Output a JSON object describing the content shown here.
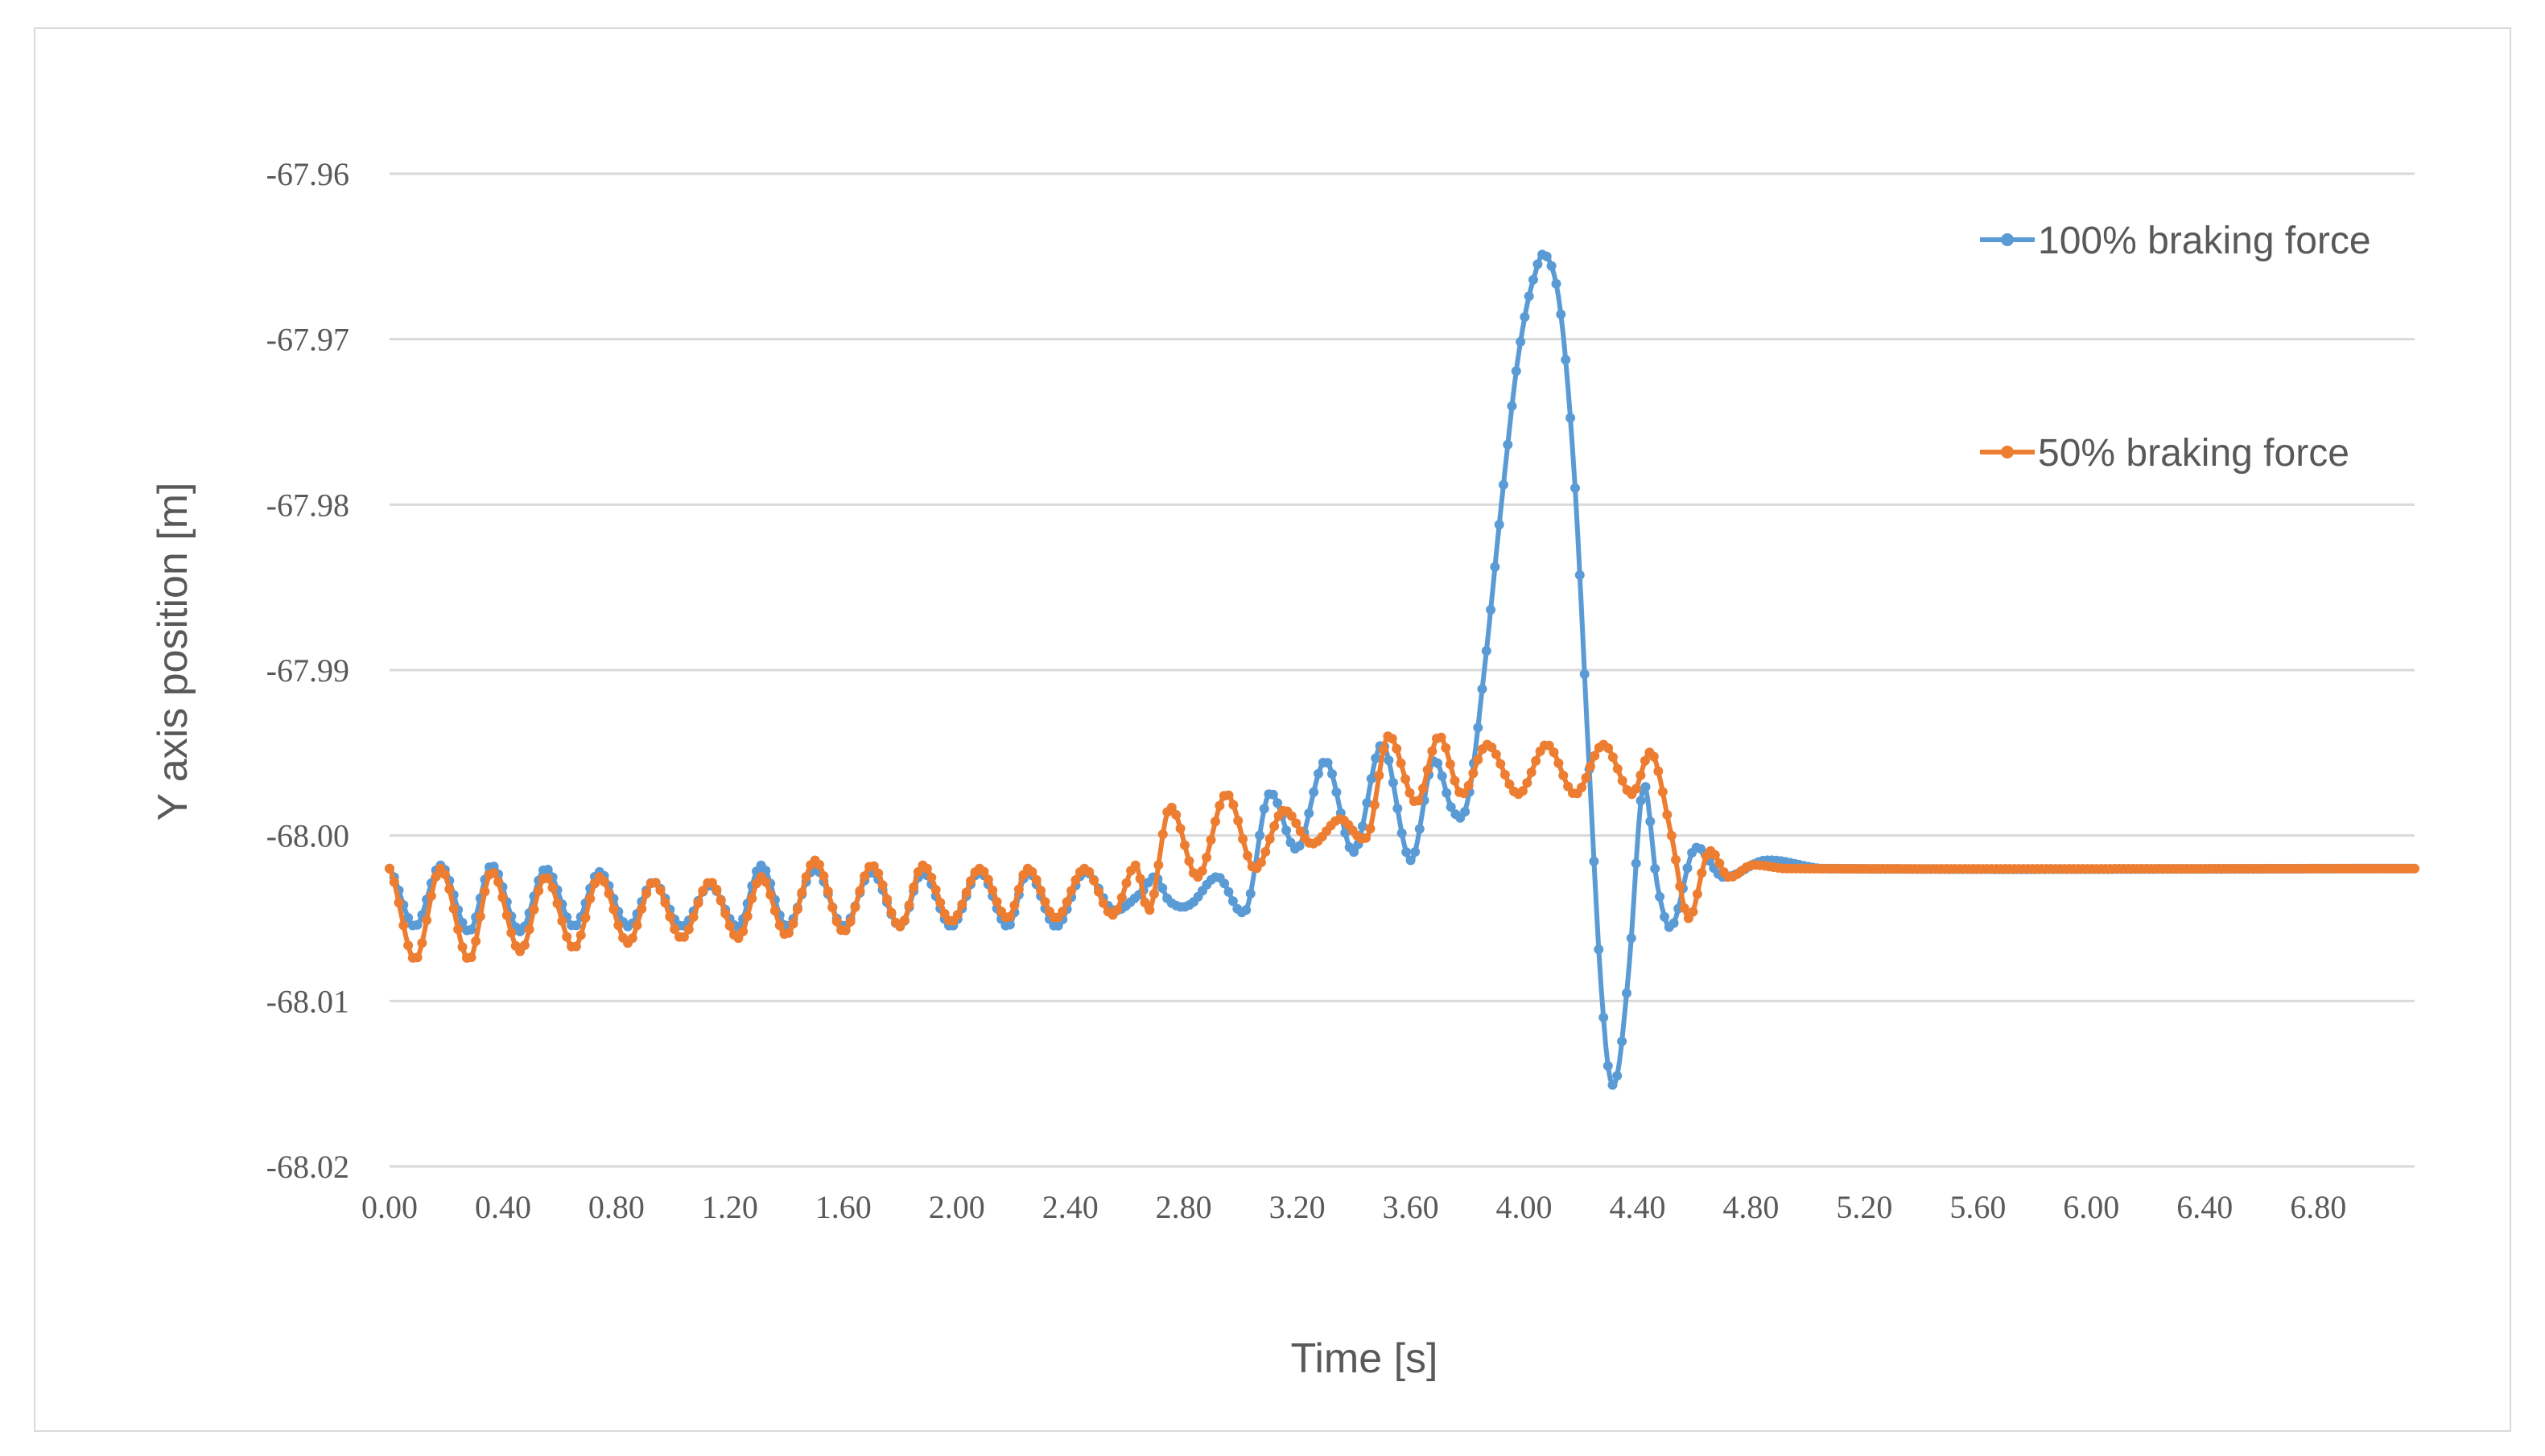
{
  "chart_data": {
    "type": "line",
    "xlabel": "Time [s]",
    "ylabel": "Y axis position  [m]",
    "xlim": [
      0,
      7.14
    ],
    "ylim": [
      -68.02,
      -67.96
    ],
    "x_ticks": [
      "0.00",
      "0.40",
      "0.80",
      "1.20",
      "1.60",
      "2.00",
      "2.40",
      "2.80",
      "3.20",
      "3.60",
      "4.00",
      "4.40",
      "4.80",
      "5.20",
      "5.60",
      "6.00",
      "6.40",
      "6.80"
    ],
    "y_ticks": [
      "-67.96",
      "-67.97",
      "-67.98",
      "-67.99",
      "-68.00",
      "-68.01",
      "-68.02"
    ],
    "grid": true,
    "legend_position": "right",
    "series": [
      {
        "name": "100% braking force",
        "color": "#5B9BD5",
        "points": [
          [
            0.0,
            -68.002
          ],
          [
            0.09,
            -68.0055
          ],
          [
            0.18,
            -68.0018
          ],
          [
            0.28,
            -68.0058
          ],
          [
            0.36,
            -68.0018
          ],
          [
            0.46,
            -68.0058
          ],
          [
            0.55,
            -68.002
          ],
          [
            0.65,
            -68.0055
          ],
          [
            0.74,
            -68.0022
          ],
          [
            0.84,
            -68.0055
          ],
          [
            0.93,
            -68.0028
          ],
          [
            1.03,
            -68.0055
          ],
          [
            1.13,
            -68.003
          ],
          [
            1.23,
            -68.0055
          ],
          [
            1.31,
            -68.0018
          ],
          [
            1.4,
            -68.0055
          ],
          [
            1.5,
            -68.002
          ],
          [
            1.6,
            -68.0055
          ],
          [
            1.7,
            -68.0022
          ],
          [
            1.8,
            -68.0055
          ],
          [
            1.88,
            -68.0022
          ],
          [
            1.98,
            -68.0055
          ],
          [
            2.08,
            -68.0022
          ],
          [
            2.18,
            -68.0055
          ],
          [
            2.25,
            -68.0022
          ],
          [
            2.35,
            -68.0055
          ],
          [
            2.45,
            -68.0022
          ],
          [
            2.55,
            -68.0045
          ],
          [
            2.65,
            -68.0035
          ],
          [
            2.7,
            -68.0025
          ],
          [
            2.75,
            -68.004
          ],
          [
            2.82,
            -68.0042
          ],
          [
            2.92,
            -68.0025
          ],
          [
            3.02,
            -68.0045
          ],
          [
            3.1,
            -67.9975
          ],
          [
            3.2,
            -68.0008
          ],
          [
            3.3,
            -67.9955
          ],
          [
            3.4,
            -68.001
          ],
          [
            3.5,
            -67.9945
          ],
          [
            3.6,
            -68.0015
          ],
          [
            3.68,
            -67.9955
          ],
          [
            3.75,
            -67.9985
          ],
          [
            3.8,
            -67.998
          ],
          [
            3.86,
            -67.99
          ],
          [
            3.92,
            -67.98
          ],
          [
            3.98,
            -67.971
          ],
          [
            4.04,
            -67.966
          ],
          [
            4.08,
            -67.965
          ],
          [
            4.13,
            -67.9685
          ],
          [
            4.18,
            -67.979
          ],
          [
            4.23,
            -67.996
          ],
          [
            4.28,
            -68.011
          ],
          [
            4.32,
            -68.015
          ],
          [
            4.37,
            -68.008
          ],
          [
            4.42,
            -67.997
          ],
          [
            4.47,
            -68.003
          ],
          [
            4.52,
            -68.0055
          ],
          [
            4.6,
            -68.0008
          ],
          [
            4.7,
            -68.0025
          ],
          [
            4.85,
            -68.0015
          ],
          [
            5.05,
            -68.002
          ],
          [
            7.14,
            -68.002
          ]
        ]
      },
      {
        "name": "50% braking force",
        "color": "#ED7D31",
        "points": [
          [
            0.0,
            -68.002
          ],
          [
            0.09,
            -68.0075
          ],
          [
            0.18,
            -68.002
          ],
          [
            0.28,
            -68.0075
          ],
          [
            0.36,
            -68.0022
          ],
          [
            0.46,
            -68.007
          ],
          [
            0.55,
            -68.0025
          ],
          [
            0.65,
            -68.0068
          ],
          [
            0.74,
            -68.0025
          ],
          [
            0.84,
            -68.0065
          ],
          [
            0.93,
            -68.0028
          ],
          [
            1.03,
            -68.0062
          ],
          [
            1.13,
            -68.0028
          ],
          [
            1.23,
            -68.0062
          ],
          [
            1.31,
            -68.0025
          ],
          [
            1.4,
            -68.006
          ],
          [
            1.5,
            -68.0015
          ],
          [
            1.6,
            -68.0058
          ],
          [
            1.7,
            -68.0018
          ],
          [
            1.8,
            -68.0055
          ],
          [
            1.88,
            -68.0018
          ],
          [
            1.98,
            -68.0052
          ],
          [
            2.08,
            -68.002
          ],
          [
            2.18,
            -68.005
          ],
          [
            2.25,
            -68.002
          ],
          [
            2.35,
            -68.005
          ],
          [
            2.45,
            -68.002
          ],
          [
            2.55,
            -68.0048
          ],
          [
            2.63,
            -68.0018
          ],
          [
            2.68,
            -68.0045
          ],
          [
            2.75,
            -67.9983
          ],
          [
            2.85,
            -68.0025
          ],
          [
            2.95,
            -67.9975
          ],
          [
            3.05,
            -68.002
          ],
          [
            3.15,
            -67.9985
          ],
          [
            3.25,
            -68.0005
          ],
          [
            3.35,
            -67.999
          ],
          [
            3.45,
            -68.0
          ],
          [
            3.52,
            -67.994
          ],
          [
            3.62,
            -67.998
          ],
          [
            3.7,
            -67.994
          ],
          [
            3.78,
            -67.9975
          ],
          [
            3.87,
            -67.9945
          ],
          [
            3.98,
            -67.9975
          ],
          [
            4.08,
            -67.9945
          ],
          [
            4.18,
            -67.9975
          ],
          [
            4.28,
            -67.9945
          ],
          [
            4.38,
            -67.9975
          ],
          [
            4.45,
            -67.995
          ],
          [
            4.52,
            -68.0
          ],
          [
            4.58,
            -68.005
          ],
          [
            4.65,
            -68.001
          ],
          [
            4.72,
            -68.0025
          ],
          [
            4.8,
            -68.0018
          ],
          [
            4.92,
            -68.002
          ],
          [
            7.14,
            -68.002
          ]
        ]
      }
    ]
  }
}
